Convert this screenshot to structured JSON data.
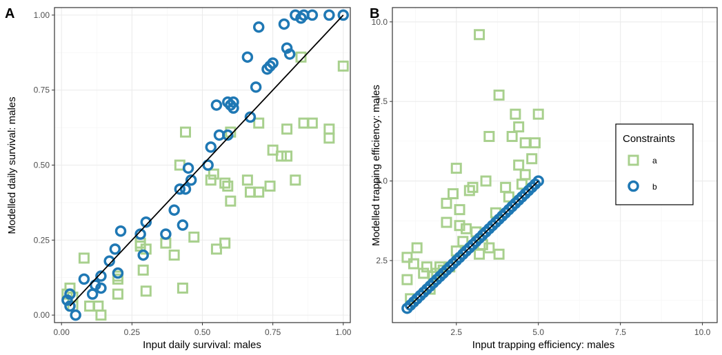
{
  "colors": {
    "a": "#a8d08d",
    "b": "#1f78b4",
    "grid": "#ebebeb",
    "frame": "#333333",
    "line": "#000000"
  },
  "legend": {
    "title": "Constraints",
    "items": [
      {
        "key": "a",
        "label": "a",
        "shape": "square"
      },
      {
        "key": "b",
        "label": "b",
        "shape": "circle"
      }
    ]
  },
  "chart_data": [
    {
      "panel": "A",
      "type": "scatter",
      "xlabel": "Input daily survival: males",
      "ylabel": "Modelled daily survival: males",
      "xlim": [
        -0.025,
        1.025
      ],
      "ylim": [
        -0.025,
        1.025
      ],
      "xticks": [
        0.0,
        0.25,
        0.5,
        0.75,
        1.0
      ],
      "yticks": [
        0.0,
        0.25,
        0.5,
        0.75,
        1.0
      ],
      "xtick_labels": [
        "0.00",
        "0.25",
        "0.50",
        "0.75",
        "1.00"
      ],
      "ytick_labels": [
        "0.00",
        "0.25",
        "0.50",
        "0.75",
        "1.00"
      ],
      "grid": true,
      "identity_line": [
        [
          0.03,
          0.03
        ],
        [
          1.0,
          1.0
        ]
      ],
      "series": [
        {
          "name": "a",
          "shape": "square",
          "points": [
            [
              0.02,
              0.07
            ],
            [
              0.03,
              0.09
            ],
            [
              0.04,
              0.06
            ],
            [
              0.04,
              0.03
            ],
            [
              0.08,
              0.19
            ],
            [
              0.1,
              0.03
            ],
            [
              0.13,
              0.03
            ],
            [
              0.14,
              0.0
            ],
            [
              0.2,
              0.13
            ],
            [
              0.2,
              0.07
            ],
            [
              0.2,
              0.12
            ],
            [
              0.28,
              0.23
            ],
            [
              0.28,
              0.24
            ],
            [
              0.29,
              0.15
            ],
            [
              0.3,
              0.22
            ],
            [
              0.3,
              0.08
            ],
            [
              0.37,
              0.24
            ],
            [
              0.4,
              0.2
            ],
            [
              0.42,
              0.5
            ],
            [
              0.43,
              0.09
            ],
            [
              0.44,
              0.61
            ],
            [
              0.47,
              0.26
            ],
            [
              0.53,
              0.45
            ],
            [
              0.54,
              0.47
            ],
            [
              0.55,
              0.22
            ],
            [
              0.58,
              0.24
            ],
            [
              0.58,
              0.44
            ],
            [
              0.59,
              0.43
            ],
            [
              0.6,
              0.38
            ],
            [
              0.6,
              0.61
            ],
            [
              0.66,
              0.45
            ],
            [
              0.67,
              0.41
            ],
            [
              0.7,
              0.64
            ],
            [
              0.7,
              0.41
            ],
            [
              0.74,
              0.43
            ],
            [
              0.75,
              0.55
            ],
            [
              0.78,
              0.53
            ],
            [
              0.8,
              0.62
            ],
            [
              0.8,
              0.53
            ],
            [
              0.83,
              0.45
            ],
            [
              0.85,
              0.86
            ],
            [
              0.86,
              0.64
            ],
            [
              0.89,
              0.64
            ],
            [
              0.95,
              0.62
            ],
            [
              0.95,
              0.59
            ],
            [
              1.0,
              0.83
            ]
          ]
        },
        {
          "name": "b",
          "shape": "circle",
          "points": [
            [
              0.02,
              0.05
            ],
            [
              0.03,
              0.07
            ],
            [
              0.03,
              0.03
            ],
            [
              0.05,
              0.0
            ],
            [
              0.08,
              0.12
            ],
            [
              0.11,
              0.07
            ],
            [
              0.12,
              0.1
            ],
            [
              0.14,
              0.13
            ],
            [
              0.14,
              0.09
            ],
            [
              0.17,
              0.18
            ],
            [
              0.19,
              0.22
            ],
            [
              0.2,
              0.14
            ],
            [
              0.21,
              0.28
            ],
            [
              0.28,
              0.27
            ],
            [
              0.29,
              0.2
            ],
            [
              0.3,
              0.31
            ],
            [
              0.37,
              0.27
            ],
            [
              0.4,
              0.35
            ],
            [
              0.42,
              0.42
            ],
            [
              0.43,
              0.3
            ],
            [
              0.44,
              0.42
            ],
            [
              0.45,
              0.49
            ],
            [
              0.46,
              0.45
            ],
            [
              0.52,
              0.5
            ],
            [
              0.53,
              0.56
            ],
            [
              0.55,
              0.7
            ],
            [
              0.56,
              0.6
            ],
            [
              0.59,
              0.71
            ],
            [
              0.59,
              0.6
            ],
            [
              0.6,
              0.7
            ],
            [
              0.61,
              0.71
            ],
            [
              0.61,
              0.69
            ],
            [
              0.66,
              0.86
            ],
            [
              0.67,
              0.66
            ],
            [
              0.69,
              0.76
            ],
            [
              0.7,
              0.96
            ],
            [
              0.73,
              0.82
            ],
            [
              0.74,
              0.83
            ],
            [
              0.75,
              0.84
            ],
            [
              0.79,
              0.97
            ],
            [
              0.8,
              0.89
            ],
            [
              0.81,
              0.87
            ],
            [
              0.83,
              1.0
            ],
            [
              0.85,
              0.99
            ],
            [
              0.86,
              1.0
            ],
            [
              0.89,
              1.0
            ],
            [
              0.95,
              1.0
            ],
            [
              1.0,
              1.0
            ]
          ]
        }
      ]
    },
    {
      "panel": "B",
      "type": "scatter",
      "xlabel": "Input trapping efficiency: males",
      "ylabel": "Modelled trapping efficiency: males",
      "xlim": [
        0.55,
        10.45
      ],
      "ylim": [
        0.55,
        10.45
      ],
      "xticks": [
        2.5,
        5.0,
        7.5,
        10.0
      ],
      "yticks": [
        2.5,
        5.0,
        7.5,
        10.0
      ],
      "xtick_labels": [
        "2.5",
        "5.0",
        "7.5",
        "10.0"
      ],
      "ytick_labels": [
        "2.5",
        "5.0",
        "7.5",
        "10.0"
      ],
      "grid": true,
      "identity_line": [
        [
          1.0,
          1.0
        ],
        [
          5.0,
          5.0
        ]
      ],
      "series": [
        {
          "name": "a",
          "shape": "square",
          "points": [
            [
              1.0,
              1.9
            ],
            [
              1.0,
              2.6
            ],
            [
              1.1,
              1.3
            ],
            [
              1.2,
              2.4
            ],
            [
              1.3,
              2.9
            ],
            [
              1.5,
              2.1
            ],
            [
              1.6,
              2.3
            ],
            [
              1.7,
              1.6
            ],
            [
              1.8,
              2.0
            ],
            [
              1.9,
              2.1
            ],
            [
              2.0,
              2.3
            ],
            [
              2.1,
              2.2
            ],
            [
              2.2,
              3.7
            ],
            [
              2.2,
              4.3
            ],
            [
              2.3,
              2.3
            ],
            [
              2.4,
              4.6
            ],
            [
              2.5,
              5.4
            ],
            [
              2.5,
              2.8
            ],
            [
              2.6,
              4.1
            ],
            [
              2.6,
              3.6
            ],
            [
              2.7,
              3.1
            ],
            [
              2.8,
              3.5
            ],
            [
              2.9,
              4.7
            ],
            [
              3.0,
              4.8
            ],
            [
              3.1,
              3.4
            ],
            [
              3.2,
              9.6
            ],
            [
              3.2,
              2.7
            ],
            [
              3.3,
              3.0
            ],
            [
              3.4,
              5.0
            ],
            [
              3.5,
              6.4
            ],
            [
              3.5,
              2.9
            ],
            [
              3.7,
              4.0
            ],
            [
              3.8,
              2.7
            ],
            [
              3.8,
              7.7
            ],
            [
              4.0,
              4.8
            ],
            [
              4.1,
              4.5
            ],
            [
              4.2,
              6.4
            ],
            [
              4.3,
              7.1
            ],
            [
              4.4,
              5.5
            ],
            [
              4.4,
              6.7
            ],
            [
              4.5,
              4.9
            ],
            [
              4.6,
              6.2
            ],
            [
              4.6,
              5.2
            ],
            [
              4.8,
              5.7
            ],
            [
              4.9,
              6.2
            ],
            [
              5.0,
              7.1
            ]
          ]
        },
        {
          "name": "b",
          "shape": "circle",
          "points": [
            [
              1.0,
              1.0
            ],
            [
              1.1,
              1.1
            ],
            [
              1.2,
              1.2
            ],
            [
              1.3,
              1.3
            ],
            [
              1.4,
              1.4
            ],
            [
              1.5,
              1.5
            ],
            [
              1.6,
              1.6
            ],
            [
              1.7,
              1.7
            ],
            [
              1.8,
              1.8
            ],
            [
              1.9,
              1.9
            ],
            [
              2.0,
              2.0
            ],
            [
              2.1,
              2.1
            ],
            [
              2.2,
              2.2
            ],
            [
              2.3,
              2.3
            ],
            [
              2.4,
              2.4
            ],
            [
              2.5,
              2.5
            ],
            [
              2.6,
              2.6
            ],
            [
              2.7,
              2.7
            ],
            [
              2.8,
              2.8
            ],
            [
              2.9,
              2.9
            ],
            [
              3.0,
              3.0
            ],
            [
              3.1,
              3.1
            ],
            [
              3.2,
              3.2
            ],
            [
              3.3,
              3.3
            ],
            [
              3.4,
              3.4
            ],
            [
              3.5,
              3.5
            ],
            [
              3.6,
              3.6
            ],
            [
              3.7,
              3.7
            ],
            [
              3.8,
              3.8
            ],
            [
              3.9,
              3.9
            ],
            [
              4.0,
              4.0
            ],
            [
              4.1,
              4.1
            ],
            [
              4.2,
              4.2
            ],
            [
              4.3,
              4.3
            ],
            [
              4.4,
              4.4
            ],
            [
              4.5,
              4.5
            ],
            [
              4.6,
              4.6
            ],
            [
              4.7,
              4.7
            ],
            [
              4.8,
              4.8
            ],
            [
              4.9,
              4.9
            ],
            [
              5.0,
              5.0
            ]
          ]
        }
      ]
    }
  ]
}
